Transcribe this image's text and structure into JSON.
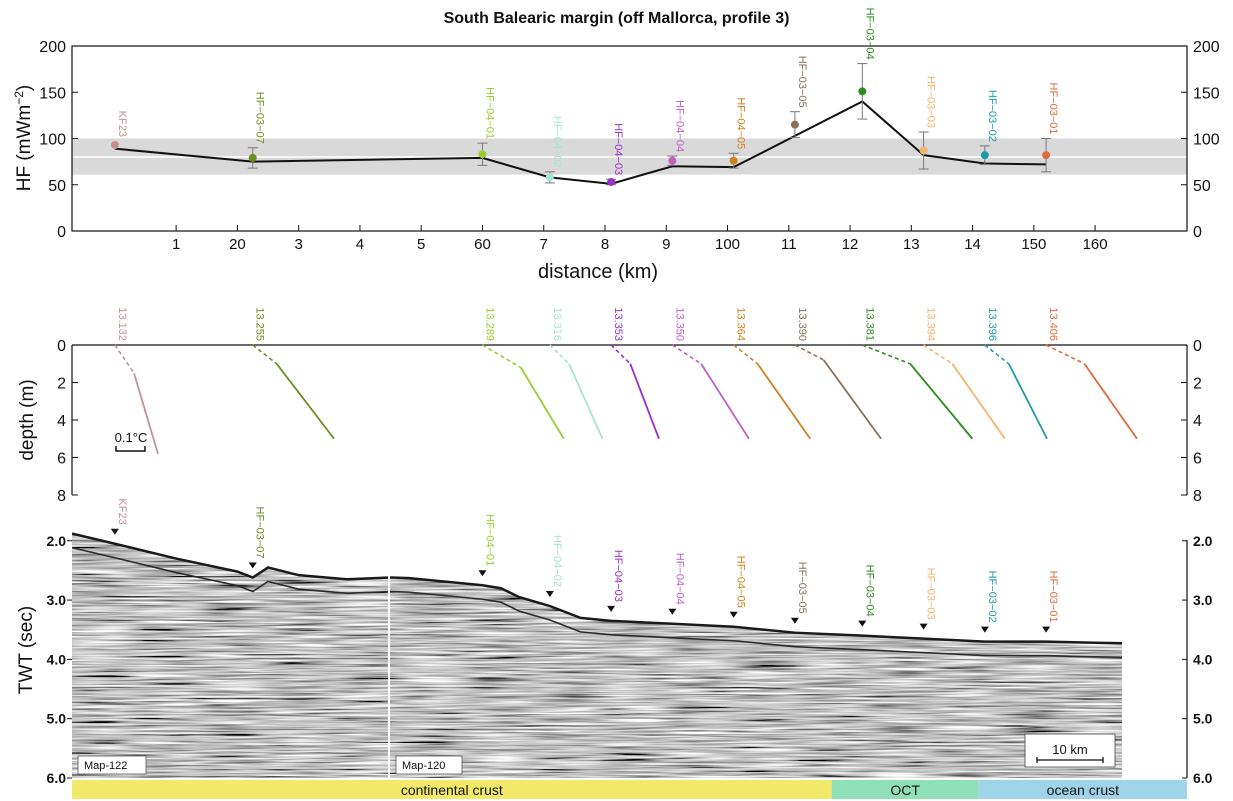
{
  "title": "South Balearic margin (off Mallorca, profile 3)",
  "chart_data": [
    {
      "type": "line",
      "name": "heat-flow",
      "ylabel": "HF (mWm",
      "ylabel_sup": "−2",
      "ylabel_close": ")",
      "xlabel": "distance (km)",
      "ylim": [
        0,
        200
      ],
      "yticks": [
        0,
        50,
        100,
        150,
        200
      ],
      "xlim": [
        -7,
        175
      ],
      "x_tick_values": [
        10,
        20,
        30,
        40,
        50,
        60,
        70,
        80,
        90,
        100,
        110,
        120,
        130,
        140,
        150,
        160
      ],
      "x_tick_labels": [
        "1",
        "20",
        "3",
        "4",
        "5",
        "60",
        "7",
        "8",
        "9",
        "100",
        "11",
        "12",
        "13",
        "14",
        "150",
        "160"
      ],
      "band": {
        "y0": 61,
        "y1": 100,
        "mean": 80,
        "color": "#d9d9d9"
      },
      "model_line": {
        "x": [
          0,
          22.5,
          60,
          71,
          81,
          91,
          101,
          122,
          132,
          142,
          152
        ],
        "y": [
          89,
          75,
          79,
          58,
          51,
          70,
          69,
          140,
          82,
          73,
          72
        ]
      },
      "stations": [
        {
          "label": "KF23",
          "x": 0,
          "y": 93,
          "err": null,
          "color": "#c98f8f"
        },
        {
          "label": "HF−03−07",
          "x": 22.5,
          "y": 79,
          "err": 11,
          "color": "#6a8f22"
        },
        {
          "label": "HF−04−01",
          "x": 60,
          "y": 83,
          "err": 12,
          "color": "#9acd32"
        },
        {
          "label": "HF−04−02",
          "x": 71,
          "y": 58,
          "err": 6,
          "color": "#a6e3d6"
        },
        {
          "label": "HF−04−03",
          "x": 81,
          "y": 53,
          "err": 3,
          "color": "#9b30c9"
        },
        {
          "label": "HF−04−04",
          "x": 91,
          "y": 76,
          "err": 5,
          "color": "#c060c0"
        },
        {
          "label": "HF−04−05",
          "x": 101,
          "y": 76,
          "err": 8,
          "color": "#d2801e"
        },
        {
          "label": "HF−03−05",
          "x": 111,
          "y": 115,
          "err": 14,
          "color": "#8b6f5a"
        },
        {
          "label": "HF−03−04",
          "x": 122,
          "y": 151,
          "err": 30,
          "color": "#2e8b22"
        },
        {
          "label": "HF−03−03",
          "x": 132,
          "y": 87,
          "err": 20,
          "color": "#f4b46b"
        },
        {
          "label": "HF−03−02",
          "x": 142,
          "y": 82,
          "err": 10,
          "color": "#1f9aa6"
        },
        {
          "label": "HF−03−01",
          "x": 152,
          "y": 82,
          "err": 18,
          "color": "#e06a3c"
        }
      ]
    },
    {
      "type": "line",
      "name": "temperature-depth",
      "ylabel": "depth (m)",
      "ylim": [
        0,
        8
      ],
      "yticks": [
        0,
        2,
        4,
        6,
        8
      ],
      "scale_label": "0.1°C",
      "profiles": [
        {
          "label": "13.132",
          "x": 0,
          "dx": [
            0,
            0.2,
            0.45
          ],
          "z": [
            0,
            1.5,
            5.8
          ],
          "color": "#c98f8f"
        },
        {
          "label": "13.255",
          "x": 22.5,
          "dx": [
            0,
            0.25,
            0.85
          ],
          "z": [
            0,
            1.0,
            5.0
          ],
          "color": "#6a8f22"
        },
        {
          "label": "13.289",
          "x": 60,
          "dx": [
            0,
            0.4,
            0.85
          ],
          "z": [
            0,
            1.2,
            5.0
          ],
          "color": "#9acd32"
        },
        {
          "label": "13.316",
          "x": 71,
          "dx": [
            0,
            0.2,
            0.55
          ],
          "z": [
            0,
            1.0,
            5.0
          ],
          "color": "#a6e3d6"
        },
        {
          "label": "13.353",
          "x": 81,
          "dx": [
            0,
            0.2,
            0.5
          ],
          "z": [
            0,
            1.0,
            5.0
          ],
          "color": "#9b30c9"
        },
        {
          "label": "13.350",
          "x": 91,
          "dx": [
            0,
            0.3,
            0.8
          ],
          "z": [
            0,
            1.0,
            5.0
          ],
          "color": "#c060c0"
        },
        {
          "label": "13.364",
          "x": 101,
          "dx": [
            0,
            0.25,
            0.8
          ],
          "z": [
            0,
            1.0,
            5.0
          ],
          "color": "#d2801e"
        },
        {
          "label": "13.390",
          "x": 111,
          "dx": [
            0,
            0.3,
            0.9
          ],
          "z": [
            0,
            0.8,
            5.0
          ],
          "color": "#8b6f5a"
        },
        {
          "label": "13.381",
          "x": 122,
          "dx": [
            0,
            0.5,
            1.15
          ],
          "z": [
            0,
            1.0,
            5.0
          ],
          "color": "#2e8b22"
        },
        {
          "label": "13.394",
          "x": 132,
          "dx": [
            0,
            0.3,
            0.85
          ],
          "z": [
            0,
            1.0,
            5.0
          ],
          "color": "#f4b46b"
        },
        {
          "label": "13.396",
          "x": 142,
          "dx": [
            0,
            0.25,
            0.65
          ],
          "z": [
            0,
            1.0,
            5.0
          ],
          "color": "#1f9aa6"
        },
        {
          "label": "13.406",
          "x": 152,
          "dx": [
            0,
            0.4,
            0.95
          ],
          "z": [
            0,
            1.0,
            5.0
          ],
          "color": "#e06a3c"
        }
      ]
    },
    {
      "type": "image",
      "name": "seismic-section",
      "ylabel": "TWT (sec)",
      "ylim": [
        1.65,
        6.0
      ],
      "yticks": [
        2.0,
        3.0,
        4.0,
        5.0,
        6.0
      ],
      "ytick_labels": [
        "2.0",
        "3.0",
        "4.0",
        "5.0",
        "6.0"
      ],
      "line_labels": [
        "Map-122",
        "Map-120"
      ],
      "scale_bar": "10 km",
      "seafloor": {
        "x": [
          -7,
          0,
          10,
          20,
          22.5,
          25,
          30,
          38,
          45,
          48,
          60,
          63,
          66,
          71,
          76,
          81,
          91,
          101,
          111,
          122,
          132,
          142,
          152,
          160,
          175
        ],
        "twt": [
          1.88,
          2.05,
          2.3,
          2.52,
          2.62,
          2.45,
          2.58,
          2.65,
          2.62,
          2.63,
          2.75,
          2.8,
          2.95,
          3.1,
          3.3,
          3.35,
          3.4,
          3.45,
          3.55,
          3.6,
          3.65,
          3.7,
          3.7,
          3.72,
          3.75
        ]
      },
      "markers": [
        {
          "label": "KF23",
          "x": 0
        },
        {
          "label": "HF−03−07",
          "x": 22.5
        },
        {
          "label": "HF−04−01",
          "x": 60
        },
        {
          "label": "HF−04−02",
          "x": 71
        },
        {
          "label": "HF−04−03",
          "x": 81
        },
        {
          "label": "HF−04−04",
          "x": 91
        },
        {
          "label": "HF−04−05",
          "x": 101
        },
        {
          "label": "HF−03−05",
          "x": 111
        },
        {
          "label": "HF−03−04",
          "x": 122
        },
        {
          "label": "HF−03−03",
          "x": 132
        },
        {
          "label": "HF−03−02",
          "x": 142
        },
        {
          "label": "HF−03−01",
          "x": 152
        }
      ],
      "crust_zones": [
        {
          "label": "continental crust",
          "from": -7,
          "to": 117,
          "color": "#f2e96a"
        },
        {
          "label": "OCT",
          "from": 117,
          "to": 141,
          "color": "#8fe0b8"
        },
        {
          "label": "ocean crust",
          "from": 141,
          "to": 175,
          "color": "#9ed3ea"
        }
      ]
    }
  ]
}
